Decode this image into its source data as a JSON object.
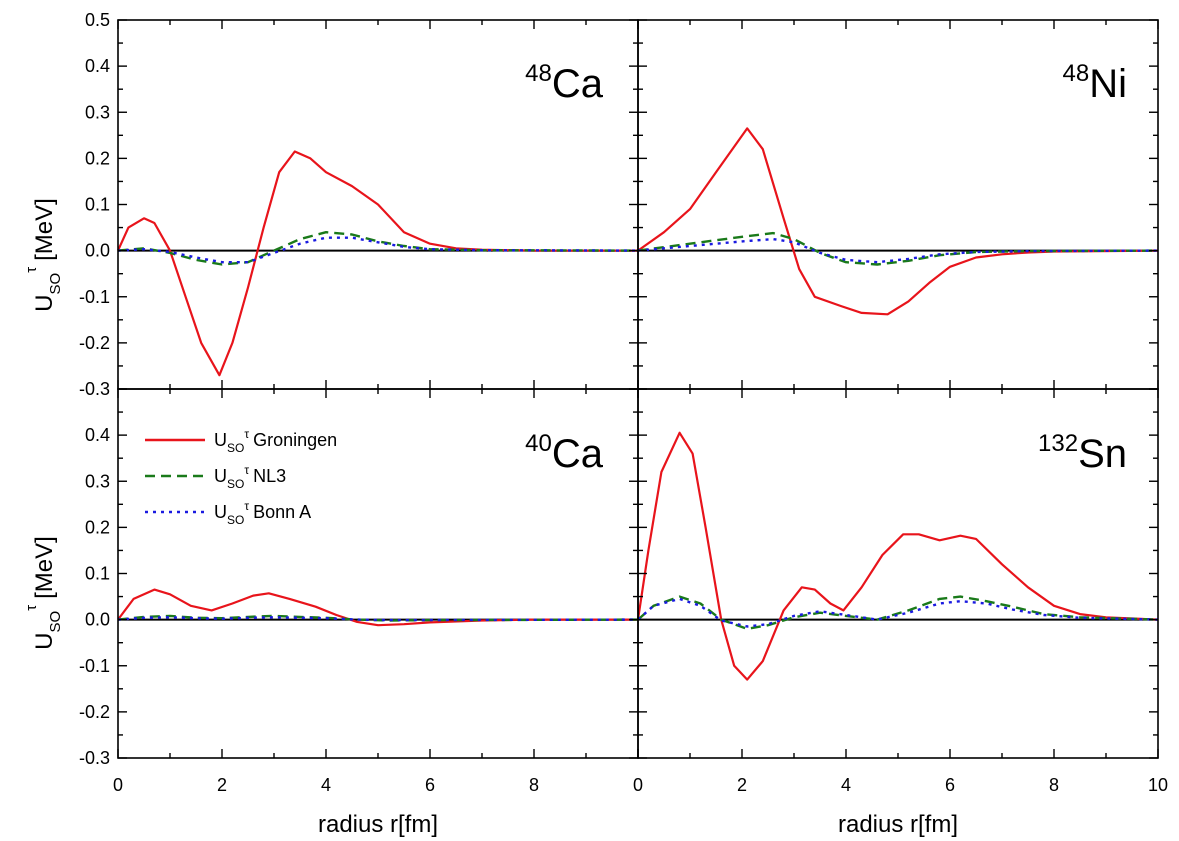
{
  "chart_data": {
    "type": "line",
    "ylabel": {
      "main": "U",
      "sub": "SO",
      "sup": "τ",
      "unit": "[MeV]"
    },
    "xlabel": "radius r[fm]",
    "xlim": [
      0,
      10
    ],
    "ylim_top": [
      -0.3,
      0.5
    ],
    "ylim_bottom": [
      -0.3,
      0.5
    ],
    "xticks": [
      "0",
      "2",
      "4",
      "6",
      "8",
      "10"
    ],
    "yticks_top": [
      "-0.3",
      "-0.2",
      "-0.1",
      "0.0",
      "0.1",
      "0.2",
      "0.3",
      "0.4",
      "0.5"
    ],
    "yticks_bottom": [
      "-0.3",
      "-0.2",
      "-0.1",
      "0.0",
      "0.1",
      "0.2",
      "0.3",
      "0.4"
    ],
    "colors": {
      "Groningen": "#e8141b",
      "NL3": "#1a7a1a",
      "Bonn A": "#1a1ae0",
      "zero": "#000000"
    },
    "legend": {
      "placement": "top-left of bottom-left panel",
      "entries": [
        {
          "key": "Groningen",
          "main": "U",
          "sub": "SO",
          "sup": "τ",
          "text": "Groningen"
        },
        {
          "key": "NL3",
          "main": "U",
          "sub": "SO",
          "sup": "τ",
          "text": "NL3"
        },
        {
          "key": "Bonn A",
          "main": "U",
          "sub": "SO",
          "sup": "τ",
          "text": "Bonn A"
        }
      ]
    },
    "panels": [
      {
        "id": "ca48",
        "mass": "48",
        "element": "Ca",
        "series": [
          {
            "key": "Groningen",
            "points": [
              [
                0,
                0
              ],
              [
                0.2,
                0.05
              ],
              [
                0.5,
                0.07
              ],
              [
                0.7,
                0.06
              ],
              [
                1,
                0.0
              ],
              [
                1.3,
                -0.1
              ],
              [
                1.6,
                -0.2
              ],
              [
                1.95,
                -0.27
              ],
              [
                2.2,
                -0.2
              ],
              [
                2.5,
                -0.08
              ],
              [
                2.8,
                0.05
              ],
              [
                3.1,
                0.17
              ],
              [
                3.4,
                0.215
              ],
              [
                3.7,
                0.2
              ],
              [
                4.0,
                0.17
              ],
              [
                4.5,
                0.14
              ],
              [
                5.0,
                0.1
              ],
              [
                5.5,
                0.04
              ],
              [
                6.0,
                0.015
              ],
              [
                6.5,
                0.005
              ],
              [
                7,
                0.002
              ],
              [
                8,
                0
              ],
              [
                10,
                0
              ]
            ]
          },
          {
            "key": "NL3",
            "points": [
              [
                0,
                0
              ],
              [
                0.5,
                0.005
              ],
              [
                1,
                -0.005
              ],
              [
                1.5,
                -0.02
              ],
              [
                2,
                -0.03
              ],
              [
                2.5,
                -0.025
              ],
              [
                3,
                0.0
              ],
              [
                3.5,
                0.025
              ],
              [
                4,
                0.04
              ],
              [
                4.5,
                0.035
              ],
              [
                5,
                0.02
              ],
              [
                5.5,
                0.01
              ],
              [
                6,
                0.003
              ],
              [
                7,
                0.001
              ],
              [
                10,
                0
              ]
            ]
          },
          {
            "key": "Bonn A",
            "points": [
              [
                0,
                0
              ],
              [
                0.5,
                0.003
              ],
              [
                1,
                -0.003
              ],
              [
                1.5,
                -0.015
              ],
              [
                2,
                -0.025
              ],
              [
                2.5,
                -0.025
              ],
              [
                3,
                -0.005
              ],
              [
                3.5,
                0.015
              ],
              [
                4,
                0.028
              ],
              [
                4.5,
                0.028
              ],
              [
                5,
                0.018
              ],
              [
                5.5,
                0.008
              ],
              [
                6,
                0.003
              ],
              [
                7,
                0.001
              ],
              [
                10,
                0
              ]
            ]
          }
        ]
      },
      {
        "id": "ni48",
        "mass": "48",
        "element": "Ni",
        "series": [
          {
            "key": "Groningen",
            "points": [
              [
                0,
                0
              ],
              [
                0.5,
                0.04
              ],
              [
                1,
                0.09
              ],
              [
                1.5,
                0.17
              ],
              [
                2.1,
                0.265
              ],
              [
                2.4,
                0.22
              ],
              [
                2.8,
                0.07
              ],
              [
                3.1,
                -0.04
              ],
              [
                3.4,
                -0.1
              ],
              [
                3.9,
                -0.12
              ],
              [
                4.3,
                -0.135
              ],
              [
                4.8,
                -0.138
              ],
              [
                5.2,
                -0.11
              ],
              [
                5.6,
                -0.07
              ],
              [
                6.0,
                -0.035
              ],
              [
                6.5,
                -0.015
              ],
              [
                7,
                -0.008
              ],
              [
                7.5,
                -0.004
              ],
              [
                8,
                -0.002
              ],
              [
                10,
                0
              ]
            ]
          },
          {
            "key": "NL3",
            "points": [
              [
                0,
                0
              ],
              [
                1,
                0.015
              ],
              [
                2,
                0.03
              ],
              [
                2.6,
                0.038
              ],
              [
                3,
                0.025
              ],
              [
                3.5,
                -0.005
              ],
              [
                4,
                -0.025
              ],
              [
                4.6,
                -0.03
              ],
              [
                5.2,
                -0.022
              ],
              [
                5.8,
                -0.01
              ],
              [
                6.5,
                -0.003
              ],
              [
                7.5,
                -0.001
              ],
              [
                10,
                0
              ]
            ]
          },
          {
            "key": "Bonn A",
            "points": [
              [
                0,
                0
              ],
              [
                1,
                0.01
              ],
              [
                2,
                0.02
              ],
              [
                2.6,
                0.025
              ],
              [
                3,
                0.018
              ],
              [
                3.5,
                -0.005
              ],
              [
                4,
                -0.02
              ],
              [
                4.6,
                -0.025
              ],
              [
                5.2,
                -0.018
              ],
              [
                5.8,
                -0.008
              ],
              [
                6.5,
                -0.003
              ],
              [
                7.5,
                -0.001
              ],
              [
                10,
                0
              ]
            ]
          }
        ]
      },
      {
        "id": "ca40",
        "mass": "40",
        "element": "Ca",
        "series": [
          {
            "key": "Groningen",
            "points": [
              [
                0,
                0
              ],
              [
                0.3,
                0.045
              ],
              [
                0.7,
                0.065
              ],
              [
                1.0,
                0.055
              ],
              [
                1.4,
                0.03
              ],
              [
                1.8,
                0.02
              ],
              [
                2.2,
                0.035
              ],
              [
                2.6,
                0.052
              ],
              [
                2.9,
                0.057
              ],
              [
                3.3,
                0.045
              ],
              [
                3.8,
                0.028
              ],
              [
                4.2,
                0.01
              ],
              [
                4.6,
                -0.005
              ],
              [
                5.0,
                -0.012
              ],
              [
                5.5,
                -0.01
              ],
              [
                6.0,
                -0.006
              ],
              [
                7,
                -0.002
              ],
              [
                8,
                0
              ],
              [
                10,
                0
              ]
            ]
          },
          {
            "key": "NL3",
            "points": [
              [
                0,
                0
              ],
              [
                0.5,
                0.006
              ],
              [
                1,
                0.008
              ],
              [
                1.5,
                0.004
              ],
              [
                2,
                0.003
              ],
              [
                2.5,
                0.006
              ],
              [
                3,
                0.008
              ],
              [
                3.5,
                0.006
              ],
              [
                4,
                0.004
              ],
              [
                4.6,
                0.0
              ],
              [
                5.2,
                -0.002
              ],
              [
                6,
                -0.001
              ],
              [
                10,
                0
              ]
            ]
          },
          {
            "key": "Bonn A",
            "points": [
              [
                0,
                0
              ],
              [
                0.5,
                0.004
              ],
              [
                1,
                0.005
              ],
              [
                1.5,
                0.003
              ],
              [
                2,
                0.002
              ],
              [
                2.5,
                0.004
              ],
              [
                3,
                0.005
              ],
              [
                3.5,
                0.004
              ],
              [
                4,
                0.003
              ],
              [
                4.6,
                0.0
              ],
              [
                5.2,
                -0.001
              ],
              [
                10,
                0
              ]
            ]
          }
        ]
      },
      {
        "id": "sn132",
        "mass": "132",
        "element": "Sn",
        "series": [
          {
            "key": "Groningen",
            "points": [
              [
                0,
                0
              ],
              [
                0.2,
                0.15
              ],
              [
                0.45,
                0.32
              ],
              [
                0.8,
                0.405
              ],
              [
                1.05,
                0.36
              ],
              [
                1.3,
                0.2
              ],
              [
                1.6,
                0.0
              ],
              [
                1.85,
                -0.1
              ],
              [
                2.1,
                -0.13
              ],
              [
                2.4,
                -0.09
              ],
              [
                2.8,
                0.02
              ],
              [
                3.15,
                0.07
              ],
              [
                3.4,
                0.065
              ],
              [
                3.7,
                0.035
              ],
              [
                3.95,
                0.02
              ],
              [
                4.3,
                0.07
              ],
              [
                4.7,
                0.14
              ],
              [
                5.1,
                0.185
              ],
              [
                5.4,
                0.185
              ],
              [
                5.8,
                0.172
              ],
              [
                6.2,
                0.182
              ],
              [
                6.5,
                0.175
              ],
              [
                7.0,
                0.12
              ],
              [
                7.5,
                0.07
              ],
              [
                8,
                0.03
              ],
              [
                8.5,
                0.012
              ],
              [
                9,
                0.005
              ],
              [
                10,
                0
              ]
            ]
          },
          {
            "key": "NL3",
            "points": [
              [
                0,
                0
              ],
              [
                0.3,
                0.03
              ],
              [
                0.8,
                0.05
              ],
              [
                1.2,
                0.035
              ],
              [
                1.6,
                0.0
              ],
              [
                2.1,
                -0.02
              ],
              [
                2.5,
                -0.012
              ],
              [
                3,
                0.005
              ],
              [
                3.5,
                0.015
              ],
              [
                4,
                0.008
              ],
              [
                4.6,
                0.0
              ],
              [
                5.2,
                0.02
              ],
              [
                5.8,
                0.045
              ],
              [
                6.2,
                0.05
              ],
              [
                6.7,
                0.04
              ],
              [
                7.2,
                0.028
              ],
              [
                7.8,
                0.012
              ],
              [
                8.5,
                0.005
              ],
              [
                10,
                0
              ]
            ]
          },
          {
            "key": "Bonn A",
            "points": [
              [
                0,
                0
              ],
              [
                0.3,
                0.03
              ],
              [
                0.8,
                0.045
              ],
              [
                1.2,
                0.03
              ],
              [
                1.6,
                -0.002
              ],
              [
                2.1,
                -0.015
              ],
              [
                2.5,
                -0.01
              ],
              [
                3,
                0.008
              ],
              [
                3.5,
                0.018
              ],
              [
                4,
                0.01
              ],
              [
                4.6,
                0.0
              ],
              [
                5.2,
                0.015
              ],
              [
                5.8,
                0.035
              ],
              [
                6.2,
                0.04
              ],
              [
                6.7,
                0.035
              ],
              [
                7.2,
                0.022
              ],
              [
                7.8,
                0.01
              ],
              [
                8.5,
                0.004
              ],
              [
                10,
                0
              ]
            ]
          }
        ]
      }
    ]
  }
}
